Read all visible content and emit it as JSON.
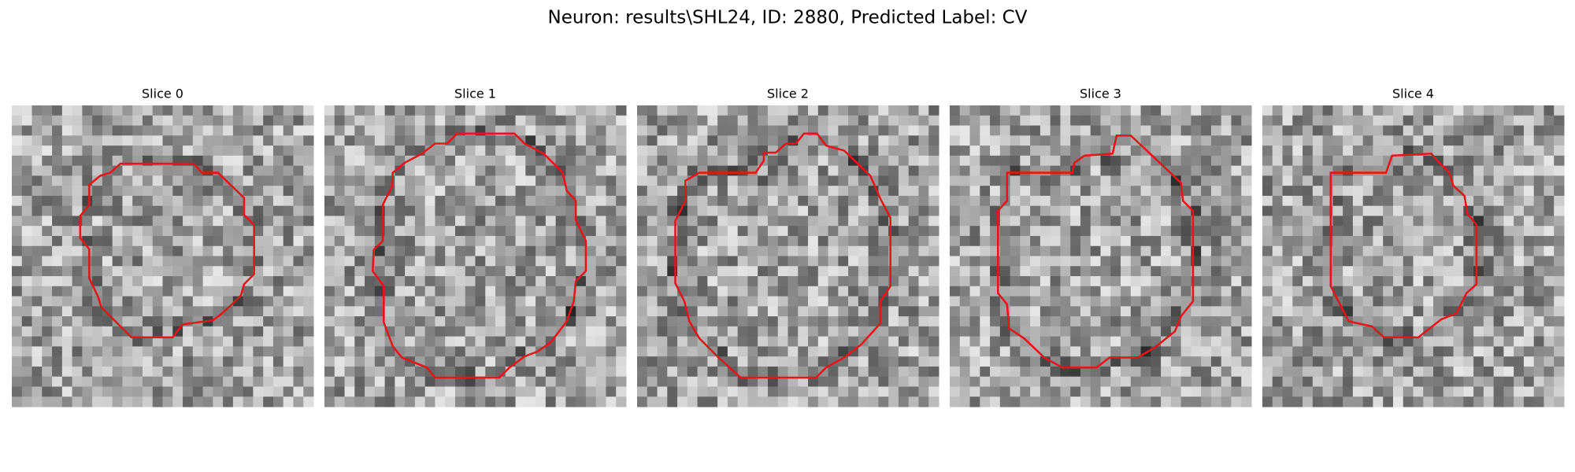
{
  "figure": {
    "title": "Neuron: results\\SHL24, ID: 2880, Predicted Label: CV",
    "panels": [
      {
        "title": "Slice 0"
      },
      {
        "title": "Slice 1"
      },
      {
        "title": "Slice 2"
      },
      {
        "title": "Slice 3"
      },
      {
        "title": "Slice 4"
      }
    ]
  }
}
